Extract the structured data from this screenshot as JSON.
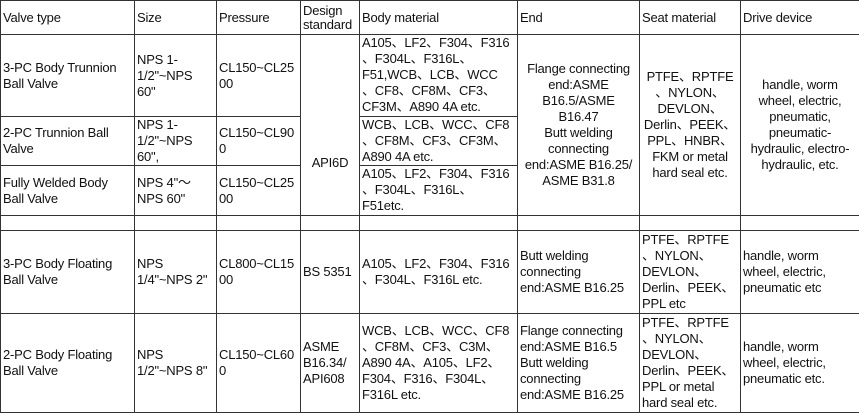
{
  "headers": [
    "Valve type",
    "Size",
    "Pressure",
    "Design\nstandard",
    "Body material",
    "End",
    "Seat material",
    "Drive device"
  ],
  "rows": [
    {
      "valve_type": "3-PC Body Trunnion\nBall Valve",
      "size": "NPS 1-\n1/2\"~NPS\n60\"",
      "pressure": "CL150~CL25\n00",
      "body": "A105、LF2、F304、F316\n、F304L、F316L、\nF51,WCB、LCB、WCC\n、CF8、CF8M、CF3、\nCF3M、A890 4A etc."
    },
    {
      "valve_type": "2-PC Trunnion Ball\nValve",
      "size": "NPS 1-\n1/2\"~NPS\n60\",",
      "pressure": "CL150~CL90\n0",
      "body": "WCB、LCB、WCC、CF8\n、CF8M、CF3、CF3M、\nA890 4A etc."
    },
    {
      "valve_type": "Fully Welded Body\nBall Valve",
      "size": "NPS 4\"～\nNPS 60\"",
      "pressure": "CL150~CL25\n00",
      "body": "A105、LF2、F304、F316\n、F304L、F316L、\nF51etc."
    },
    {
      "valve_type": "3-PC Body Floating\nBall Valve",
      "size": "NPS\n1/4\"~NPS 2\"",
      "pressure": "CL800~CL15\n00",
      "standard": "BS 5351",
      "body": "A105、LF2、F304、F316\n、F304L、F316L etc.",
      "end": "Butt welding\nconnecting\nend:ASME B16.25",
      "seat": "PTFE、RPTFE\n、NYLON、\nDEVLON、\nDerlin、PEEK、\nPPL etc",
      "drive": "handle, worm\nwheel, electric,\npneumatic etc"
    },
    {
      "valve_type": "2-PC Body Floating\nBall Valve",
      "size": "NPS\n1/2\"~NPS 8\"",
      "pressure": "CL150~CL60\n0",
      "standard": "ASME\nB16.34/\nAPI608",
      "body": "WCB、LCB、WCC、CF8\n、CF8M、CF3、C3M、\nA890 4A、A105、LF2、\nF304、F316、F304L、\nF316L etc.",
      "end": "Flange connecting\nend:ASME B16.5\nButt welding\nconnecting\nend:ASME B16.25",
      "seat": "PTFE、RPTFE\n、NYLON、\nDEVLON、\nDerlin、PEEK、\nPPL or metal\nhard seal etc.",
      "drive": "handle, worm\nwheel, electric,\npneumatic etc."
    }
  ],
  "trunnion_group": {
    "standard": "API6D",
    "end": "Flange connecting\nend:ASME\nB16.5/ASME\nB16.47\nButt welding\nconnecting\nend:ASME B16.25/\nASME B31.8",
    "seat": "PTFE、RPTFE\n、NYLON、\nDEVLON、\nDerlin、PEEK、\nPPL、HNBR、\nFKM or metal\nhard seal etc.",
    "drive": "handle, worm\nwheel, electric,\npneumatic,\npneumatic-\nhydraulic, electro-\nhydraulic, etc."
  }
}
